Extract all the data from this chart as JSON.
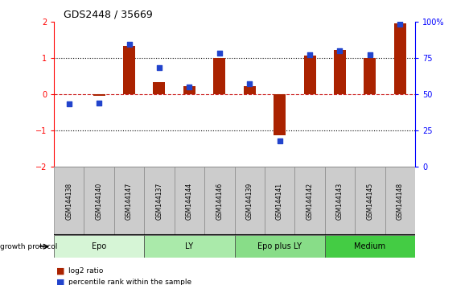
{
  "title": "GDS2448 / 35669",
  "samples": [
    "GSM144138",
    "GSM144140",
    "GSM144147",
    "GSM144137",
    "GSM144144",
    "GSM144146",
    "GSM144139",
    "GSM144141",
    "GSM144142",
    "GSM144143",
    "GSM144145",
    "GSM144148"
  ],
  "log2_ratio": [
    0.0,
    -0.05,
    1.32,
    0.32,
    0.22,
    1.0,
    0.22,
    -1.13,
    1.05,
    1.22,
    1.0,
    1.95
  ],
  "percentile_rank": [
    43,
    44,
    84,
    68,
    55,
    78,
    57,
    18,
    77,
    80,
    77,
    98
  ],
  "groups": [
    {
      "label": "Epo",
      "start": 0,
      "end": 3,
      "color": "#d6f5d6"
    },
    {
      "label": "LY",
      "start": 3,
      "end": 6,
      "color": "#aaeaaa"
    },
    {
      "label": "Epo plus LY",
      "start": 6,
      "end": 9,
      "color": "#88dd88"
    },
    {
      "label": "Medium",
      "start": 9,
      "end": 12,
      "color": "#44cc44"
    }
  ],
  "ylim": [
    -2,
    2
  ],
  "y2lim": [
    0,
    100
  ],
  "bar_color": "#aa2200",
  "dot_color": "#2244cc",
  "zero_line_color": "#cc2222",
  "background_color": "#ffffff",
  "sample_box_color": "#cccccc",
  "sample_box_edge": "#888888"
}
